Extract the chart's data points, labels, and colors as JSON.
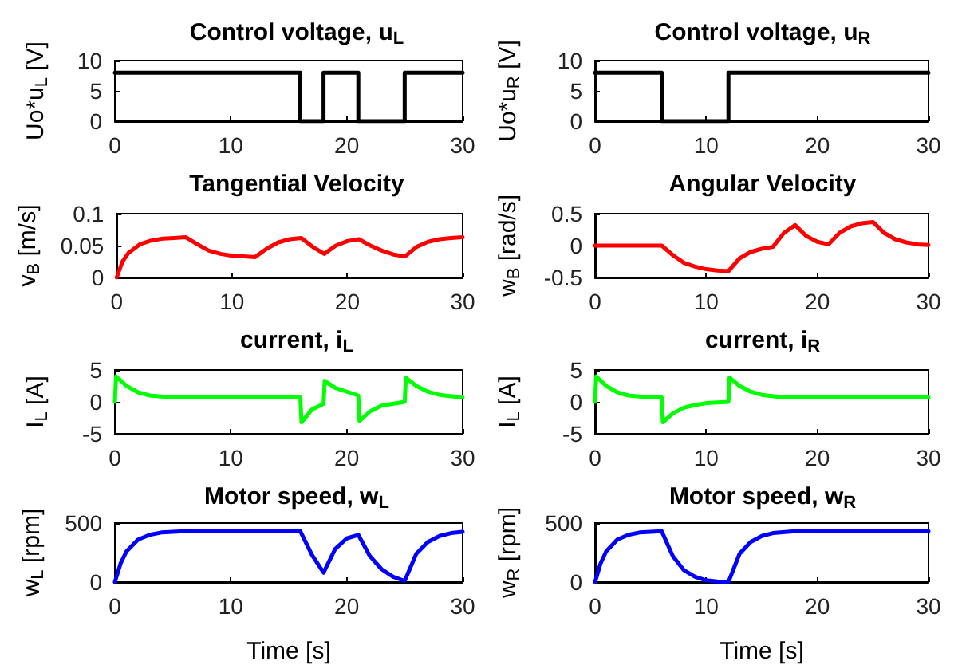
{
  "chart_data": [
    {
      "type": "line",
      "title": "Control voltage, u$_{L}$",
      "ylabel": "Uo*u$_{L}$ [V]",
      "xlim": [
        0,
        30
      ],
      "xticks": [
        0,
        10,
        20,
        30
      ],
      "ylim": [
        0,
        10
      ],
      "yticks": [
        0,
        5,
        10
      ],
      "line_style": "solid",
      "x": [
        0,
        16,
        16,
        18,
        18,
        21,
        21,
        25,
        25,
        30
      ],
      "series": [
        {
          "color": "#000000",
          "values": [
            8,
            8,
            0,
            0,
            8,
            8,
            0,
            0,
            8,
            8
          ]
        }
      ]
    },
    {
      "type": "line",
      "title": "Control voltage, u$_{R}$",
      "ylabel": "Uo*u$_{R}$ [V]",
      "xlim": [
        0,
        30
      ],
      "xticks": [
        0,
        10,
        20,
        30
      ],
      "ylim": [
        0,
        10
      ],
      "yticks": [
        0,
        5,
        10
      ],
      "line_style": "solid",
      "x": [
        0,
        6,
        6,
        12,
        12,
        30
      ],
      "series": [
        {
          "color": "#000000",
          "values": [
            8,
            8,
            0,
            0,
            8,
            8
          ]
        }
      ]
    },
    {
      "type": "line",
      "title": "Tangential Velocity",
      "ylabel": "v$_{B}$ [m/s]",
      "xlim": [
        0,
        30
      ],
      "xticks": [
        0,
        10,
        20,
        30
      ],
      "ylim": [
        0,
        0.1
      ],
      "yticks": [
        0,
        0.05,
        0.1
      ],
      "line_style": "solid",
      "x": [
        0,
        0.5,
        1,
        2,
        3,
        4,
        5,
        6,
        7,
        8,
        9,
        10,
        11,
        12,
        13,
        14,
        15,
        16,
        17,
        18,
        19,
        20,
        21,
        22,
        23,
        24,
        25,
        26,
        27,
        28,
        29,
        30
      ],
      "series": [
        {
          "color": "#ff0000",
          "values": [
            0,
            0.025,
            0.038,
            0.052,
            0.058,
            0.061,
            0.062,
            0.063,
            0.052,
            0.042,
            0.037,
            0.034,
            0.033,
            0.032,
            0.045,
            0.055,
            0.06,
            0.062,
            0.048,
            0.037,
            0.05,
            0.057,
            0.06,
            0.05,
            0.042,
            0.036,
            0.033,
            0.048,
            0.056,
            0.06,
            0.062,
            0.063
          ]
        }
      ]
    },
    {
      "type": "line",
      "title": "Angular Velocity",
      "ylabel": "w$_{B}$ [rad/s]",
      "xlim": [
        0,
        30
      ],
      "xticks": [
        0,
        10,
        20,
        30
      ],
      "ylim": [
        -0.5,
        0.5
      ],
      "yticks": [
        -0.5,
        0,
        0.5
      ],
      "line_style": "solid",
      "x": [
        0,
        6,
        7,
        8,
        9,
        10,
        11,
        12,
        13,
        14,
        15,
        16,
        17,
        18,
        19,
        20,
        21,
        22,
        23,
        24,
        25,
        26,
        27,
        28,
        29,
        30
      ],
      "series": [
        {
          "color": "#ff0000",
          "values": [
            0,
            0,
            -0.15,
            -0.27,
            -0.33,
            -0.37,
            -0.39,
            -0.4,
            -0.2,
            -0.1,
            -0.05,
            -0.02,
            0.2,
            0.32,
            0.15,
            0.06,
            0.02,
            0.2,
            0.3,
            0.35,
            0.37,
            0.2,
            0.1,
            0.05,
            0.02,
            0.01
          ]
        }
      ]
    },
    {
      "type": "line",
      "title": "current, i$_{L}$",
      "ylabel": "I$_{L}$ [A]",
      "xlim": [
        0,
        30
      ],
      "xticks": [
        0,
        10,
        20,
        30
      ],
      "ylim": [
        -5,
        5
      ],
      "yticks": [
        -5,
        0,
        5
      ],
      "line_style": "solid",
      "x": [
        0,
        0.1,
        1,
        2,
        3,
        5,
        16,
        16.1,
        17,
        18,
        18.1,
        19,
        21,
        21.1,
        22,
        23,
        25,
        25.1,
        26,
        27,
        28,
        30
      ],
      "series": [
        {
          "color": "#00ff00",
          "values": [
            0,
            4,
            2.5,
            1.5,
            1,
            0.7,
            0.7,
            -3.2,
            -1.2,
            -0.3,
            3.3,
            2.2,
            1,
            -3,
            -1.5,
            -0.6,
            0,
            3.8,
            2.5,
            1.6,
            1.1,
            0.7
          ]
        }
      ]
    },
    {
      "type": "line",
      "title": "current, i$_{R}$",
      "ylabel": "I$_{L}$ [A]",
      "xlim": [
        0,
        30
      ],
      "xticks": [
        0,
        10,
        20,
        30
      ],
      "ylim": [
        -5,
        5
      ],
      "yticks": [
        -5,
        0,
        5
      ],
      "line_style": "solid",
      "x": [
        0,
        0.1,
        1,
        2,
        3,
        5,
        6,
        6.1,
        7,
        8,
        9,
        10,
        12,
        12.1,
        13,
        14,
        15,
        17,
        30
      ],
      "series": [
        {
          "color": "#00ff00",
          "values": [
            0,
            4,
            2.5,
            1.5,
            1,
            0.7,
            0.7,
            -3.2,
            -1.8,
            -0.9,
            -0.5,
            -0.2,
            0,
            3.8,
            2.5,
            1.6,
            1.1,
            0.7,
            0.7
          ]
        }
      ]
    },
    {
      "type": "line",
      "title": "Motor speed, w$_{L}$",
      "xlabel": "Time [s]",
      "ylabel": "w$_{L}$ [rpm]",
      "xlim": [
        0,
        30
      ],
      "xticks": [
        0,
        10,
        20,
        30
      ],
      "ylim": [
        0,
        500
      ],
      "yticks": [
        0,
        500
      ],
      "line_style": "solid",
      "x": [
        0,
        0.5,
        1,
        2,
        3,
        4,
        6,
        16,
        17,
        18,
        19,
        20,
        21,
        22,
        23,
        24,
        25,
        26,
        27,
        28,
        29,
        30
      ],
      "series": [
        {
          "color": "#0000ff",
          "values": [
            0,
            160,
            260,
            360,
            400,
            420,
            430,
            430,
            230,
            80,
            280,
            370,
            400,
            220,
            110,
            45,
            10,
            240,
            340,
            390,
            415,
            425
          ]
        }
      ]
    },
    {
      "type": "line",
      "title": "Motor speed, w$_{R}$",
      "xlabel": "Time [s]",
      "ylabel": "w$_{R}$ [rpm]",
      "xlim": [
        0,
        30
      ],
      "xticks": [
        0,
        10,
        20,
        30
      ],
      "ylim": [
        0,
        500
      ],
      "yticks": [
        0,
        500
      ],
      "line_style": "solid",
      "x": [
        0,
        0.5,
        1,
        2,
        3,
        4,
        6,
        7,
        8,
        9,
        10,
        11,
        12,
        13,
        14,
        15,
        16,
        18,
        30
      ],
      "series": [
        {
          "color": "#0000ff",
          "values": [
            0,
            160,
            260,
            360,
            400,
            420,
            430,
            220,
            100,
            45,
            15,
            5,
            0,
            240,
            340,
            390,
            415,
            430,
            430
          ]
        }
      ]
    }
  ]
}
